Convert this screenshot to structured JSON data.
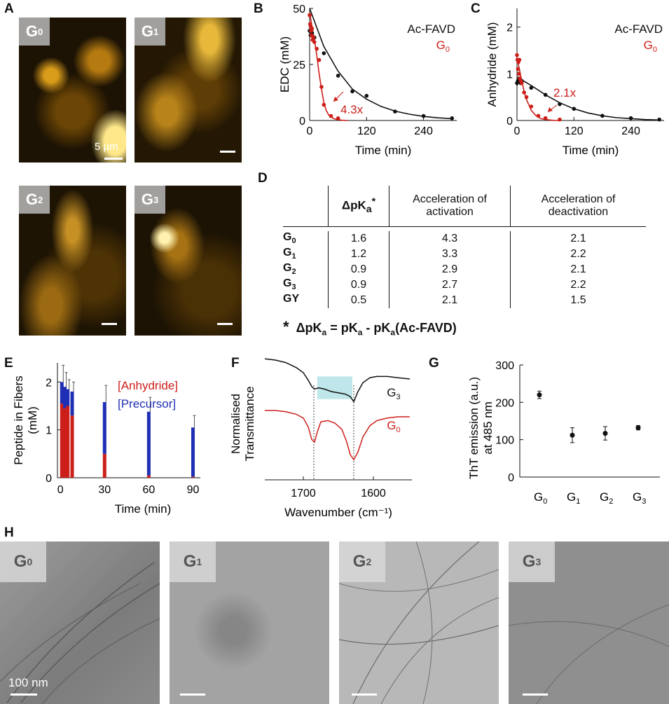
{
  "panels": {
    "A": "A",
    "B": "B",
    "C": "C",
    "D": "D",
    "E": "E",
    "F": "F",
    "G": "G",
    "H": "H"
  },
  "micrographs": [
    {
      "base": "G",
      "sub": "0"
    },
    {
      "base": "G",
      "sub": "1"
    },
    {
      "base": "G",
      "sub": "2"
    },
    {
      "base": "G",
      "sub": "3"
    }
  ],
  "micro_scale_text": "5 µm",
  "tem_images": [
    {
      "base": "G",
      "sub": "0"
    },
    {
      "base": "G",
      "sub": "1"
    },
    {
      "base": "G",
      "sub": "2"
    },
    {
      "base": "G",
      "sub": "3"
    }
  ],
  "tem_scale_text": "100 nm",
  "colors": {
    "black_series": "#111111",
    "red_series": "#cc1f1a",
    "precursor": "#1f2fb5",
    "anhydride": "#cc1f1a",
    "highlight": "#bfe6ea"
  },
  "table_D": {
    "headers": {
      "h1_main": "ΔpK",
      "h1_sub": "a",
      "h1_star": "*",
      "h2_line1": "Acceleration of",
      "h2_line2": "activation",
      "h3_line1": "Acceleration of",
      "h3_line2": "deactivation"
    },
    "rows": [
      {
        "label": "G",
        "sub": "0",
        "dpka": "1.6",
        "act": "4.3",
        "deact": "2.1"
      },
      {
        "label": "G",
        "sub": "1",
        "dpka": "1.2",
        "act": "3.3",
        "deact": "2.2"
      },
      {
        "label": "G",
        "sub": "2",
        "dpka": "0.9",
        "act": "2.9",
        "deact": "2.1"
      },
      {
        "label": "G",
        "sub": "3",
        "dpka": "0.9",
        "act": "2.7",
        "deact": "2.2"
      },
      {
        "label": "GY",
        "sub": "",
        "dpka": "0.5",
        "act": "2.1",
        "deact": "1.5"
      }
    ],
    "footnote": {
      "star": "*",
      "p1": "ΔpK",
      "s1": "a",
      "p2": " = pK",
      "s2": "a",
      "p3": " - pK",
      "s3": "a",
      "p4": "(Ac-FAVD)"
    }
  },
  "chart_data": [
    {
      "id": "B",
      "type": "scatter",
      "xlabel": "Time (min)",
      "ylabel": "EDC (mM)",
      "xlim": [
        0,
        310
      ],
      "ylim": [
        0,
        50
      ],
      "xticks": [
        "0",
        "120",
        "240"
      ],
      "xtick_values": [
        0,
        120,
        240
      ],
      "yticks": [
        "0",
        "25",
        "50"
      ],
      "ytick_values": [
        0,
        25,
        50
      ],
      "legend": [
        {
          "name": "Ac-FAVD",
          "color": "#111111"
        },
        {
          "name": "G",
          "sub": "0",
          "color": "#cc1f1a"
        }
      ],
      "annotation": "4.3x",
      "series": [
        {
          "name": "Ac-FAVD",
          "color": "#111111",
          "x": [
            0,
            2,
            5,
            10,
            30,
            60,
            90,
            120,
            180,
            240,
            300
          ],
          "y": [
            40,
            38,
            39,
            37,
            30,
            20,
            13,
            11,
            4,
            2,
            1
          ]
        },
        {
          "name": "G0",
          "color": "#cc1f1a",
          "x": [
            0,
            1,
            2,
            3,
            4,
            5,
            6,
            8,
            10,
            15,
            20,
            25,
            30,
            45,
            60
          ],
          "y": [
            47,
            43,
            42,
            40,
            38,
            41,
            36,
            37,
            35,
            32,
            27,
            15,
            7,
            2,
            1
          ]
        }
      ],
      "fits": [
        {
          "color": "#111111",
          "x": [
            0,
            30,
            60,
            90,
            120,
            150,
            180,
            210,
            240,
            270,
            300
          ],
          "y": [
            50,
            33,
            22,
            14,
            9.5,
            6.3,
            4.2,
            2.8,
            1.8,
            1.2,
            0.8
          ]
        },
        {
          "color": "#cc1f1a",
          "x": [
            0,
            5,
            10,
            15,
            20,
            25,
            30,
            35,
            40,
            50,
            60,
            70,
            80
          ],
          "y": [
            48,
            42,
            36,
            29,
            21,
            14,
            8,
            4.5,
            2.5,
            0.9,
            0.3,
            0.1,
            0
          ]
        }
      ]
    },
    {
      "id": "C",
      "type": "scatter",
      "xlabel": "Time (min)",
      "ylabel": "Anhydride (mM)",
      "xlim": [
        0,
        310
      ],
      "ylim": [
        0,
        2.4
      ],
      "xticks": [
        "0",
        "120",
        "240"
      ],
      "xtick_values": [
        0,
        120,
        240
      ],
      "yticks": [
        "0",
        "1",
        "2"
      ],
      "ytick_values": [
        0,
        1,
        2
      ],
      "legend": [
        {
          "name": "Ac-FAVD",
          "color": "#111111"
        },
        {
          "name": "G",
          "sub": "0",
          "color": "#cc1f1a"
        }
      ],
      "annotation": "2.1x",
      "series": [
        {
          "name": "Ac-FAVD",
          "color": "#111111",
          "x": [
            0,
            2,
            4,
            6,
            8,
            10,
            30,
            60,
            90,
            120,
            180,
            240,
            300
          ],
          "y": [
            0.8,
            0.85,
            0.9,
            0.85,
            0.8,
            0.85,
            0.7,
            0.55,
            0.35,
            0.25,
            0.1,
            0.05,
            0.02
          ]
        },
        {
          "name": "G0",
          "color": "#cc1f1a",
          "x": [
            0,
            1,
            2,
            3,
            4,
            5,
            6,
            8,
            10,
            15,
            20,
            30,
            45,
            60,
            90
          ],
          "y": [
            1.4,
            1.3,
            1.1,
            1.25,
            1.0,
            1.3,
            0.9,
            0.85,
            0.8,
            0.6,
            0.5,
            0.3,
            0.1,
            0.05,
            0.02
          ]
        }
      ],
      "fits": [
        {
          "color": "#111111",
          "x": [
            0,
            5,
            15,
            30,
            60,
            90,
            120,
            150,
            180,
            210,
            240,
            270,
            300
          ],
          "y": [
            0.75,
            0.85,
            0.84,
            0.75,
            0.55,
            0.38,
            0.25,
            0.16,
            0.1,
            0.06,
            0.04,
            0.02,
            0.01
          ]
        },
        {
          "color": "#cc1f1a",
          "x": [
            0,
            5,
            10,
            15,
            20,
            30,
            40,
            50,
            60,
            70,
            80,
            90
          ],
          "y": [
            1.35,
            1.1,
            0.85,
            0.62,
            0.45,
            0.22,
            0.1,
            0.04,
            0.02,
            0.01,
            0,
            0
          ]
        }
      ]
    },
    {
      "id": "E",
      "type": "bar",
      "stacked": true,
      "xlabel": "Time (min)",
      "ylabel_line1": "Peptide in Fibers",
      "ylabel_line2": "(mM)",
      "xlim": [
        -2,
        95
      ],
      "ylim": [
        0,
        2.4
      ],
      "xticks": [
        "0",
        "30",
        "60",
        "90"
      ],
      "xtick_values": [
        0,
        30,
        60,
        90
      ],
      "yticks": [
        "0",
        "1",
        "2"
      ],
      "ytick_values": [
        0,
        1,
        2
      ],
      "legend": [
        {
          "name": "[Anhydride]",
          "color": "#cc1f1a"
        },
        {
          "name": "[Precursor]",
          "color": "#1f2fb5"
        }
      ],
      "x": [
        1,
        3,
        5,
        8,
        30,
        60,
        90
      ],
      "series": [
        {
          "name": "[Anhydride]",
          "color": "#cc1f1a",
          "values": [
            1.55,
            1.45,
            1.5,
            1.3,
            0.5,
            0.05,
            0.02
          ]
        },
        {
          "name": "[Precursor]",
          "color": "#1f2fb5",
          "values": [
            0.45,
            0.45,
            0.35,
            0.5,
            1.08,
            1.33,
            1.03
          ]
        }
      ],
      "error": [
        0.35,
        0.3,
        0.2,
        0.2,
        0.35,
        0.3,
        0.25
      ]
    },
    {
      "id": "F",
      "type": "line",
      "xlabel": "Wavenumber (cm⁻¹)",
      "ylabel_line1": "Normalised",
      "ylabel_line2": "Transmittance",
      "xlim": [
        1755,
        1545
      ],
      "xticks": [
        "1700",
        "1600"
      ],
      "xtick_values": [
        1700,
        1600
      ],
      "vlines": [
        1685,
        1628
      ],
      "highlight": [
        1680,
        1630
      ],
      "series": [
        {
          "name": "G",
          "sub": "3",
          "color": "#111111",
          "x": [
            1755,
            1740,
            1725,
            1710,
            1700,
            1693,
            1688,
            1684,
            1678,
            1670,
            1660,
            1650,
            1640,
            1633,
            1628,
            1622,
            1615,
            1605,
            1595,
            1580,
            1565,
            1548
          ],
          "y": [
            0.96,
            0.95,
            0.93,
            0.89,
            0.85,
            0.79,
            0.74,
            0.72,
            0.73,
            0.72,
            0.7,
            0.69,
            0.68,
            0.66,
            0.62,
            0.7,
            0.77,
            0.81,
            0.82,
            0.82,
            0.81,
            0.8
          ]
        },
        {
          "name": "G",
          "sub": "0",
          "color": "#cc1f1a",
          "x": [
            1755,
            1740,
            1725,
            1710,
            1700,
            1693,
            1688,
            1684,
            1680,
            1675,
            1665,
            1655,
            1645,
            1638,
            1633,
            1628,
            1622,
            1615,
            1605,
            1595,
            1580,
            1565,
            1548
          ],
          "y": [
            0.55,
            0.55,
            0.54,
            0.52,
            0.49,
            0.42,
            0.32,
            0.3,
            0.38,
            0.46,
            0.47,
            0.45,
            0.4,
            0.3,
            0.2,
            0.16,
            0.22,
            0.34,
            0.43,
            0.47,
            0.49,
            0.5,
            0.5
          ]
        }
      ]
    },
    {
      "id": "G",
      "type": "scatter",
      "ylabel_line1": "ThT  emission (a.u.)",
      "ylabel_line2": "at 485 nm",
      "ylim": [
        0,
        300
      ],
      "yticks": [
        "0",
        "100",
        "200",
        "300"
      ],
      "ytick_values": [
        0,
        100,
        200,
        300
      ],
      "categories": [
        {
          "base": "G",
          "sub": "0"
        },
        {
          "base": "G",
          "sub": "1"
        },
        {
          "base": "G",
          "sub": "2"
        },
        {
          "base": "G",
          "sub": "3"
        }
      ],
      "values": [
        220,
        112,
        117,
        132
      ],
      "error": [
        10,
        20,
        18,
        6
      ]
    }
  ]
}
